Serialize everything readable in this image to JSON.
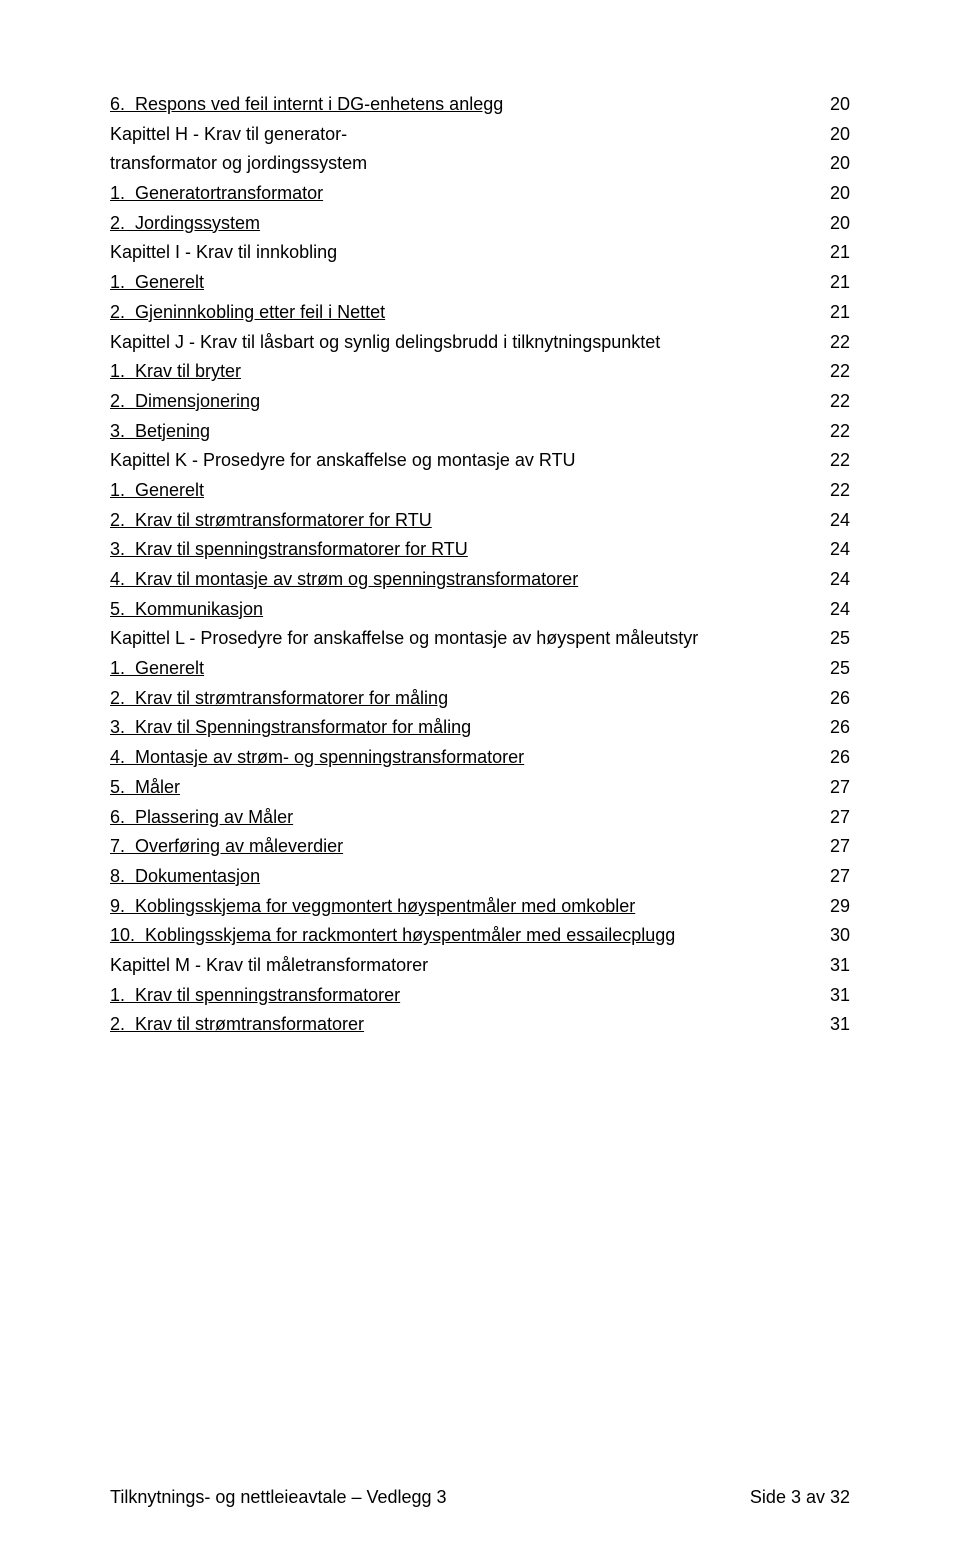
{
  "toc": [
    {
      "num": "6.",
      "text": "Respons ved feil internt i DG-enhetens anlegg",
      "page": "20",
      "indent": "indent-1",
      "underline": true
    },
    {
      "num": "",
      "text": "Kapittel H - Krav til generator-",
      "page": "20",
      "indent": "",
      "underline": false
    },
    {
      "num": "",
      "text": "transformator og jordingssystem",
      "page": "20",
      "indent": "",
      "underline": false
    },
    {
      "num": "1.",
      "text": "Generatortransformator",
      "page": "20",
      "indent": "indent-1",
      "underline": true
    },
    {
      "num": "2.",
      "text": "Jordingssystem",
      "page": "20",
      "indent": "indent-1",
      "underline": true
    },
    {
      "num": "",
      "text": "Kapittel I - Krav til innkobling",
      "page": "21",
      "indent": "",
      "underline": false
    },
    {
      "num": "1.",
      "text": "Generelt",
      "page": "21",
      "indent": "indent-1",
      "underline": true
    },
    {
      "num": "2.",
      "text": "Gjeninnkobling etter feil i Nettet",
      "page": "21",
      "indent": "indent-1",
      "underline": true
    },
    {
      "num": "",
      "text": "Kapittel J - Krav til låsbart og synlig delingsbrudd i tilknytningspunktet",
      "page": "22",
      "indent": "",
      "underline": false
    },
    {
      "num": "1.",
      "text": "Krav til bryter",
      "page": "22",
      "indent": "indent-1",
      "underline": true
    },
    {
      "num": "2.",
      "text": "Dimensjonering",
      "page": "22",
      "indent": "indent-1",
      "underline": true
    },
    {
      "num": "3.",
      "text": "Betjening",
      "page": "22",
      "indent": "indent-1",
      "underline": true
    },
    {
      "num": "",
      "text": "Kapittel K - Prosedyre for anskaffelse og montasje av RTU",
      "page": "22",
      "indent": "",
      "underline": false
    },
    {
      "num": "1.",
      "text": "Generelt",
      "page": "22",
      "indent": "indent-1",
      "underline": true
    },
    {
      "num": "2.",
      "text": "Krav til strømtransformatorer for RTU",
      "page": "24",
      "indent": "indent-1",
      "underline": true
    },
    {
      "num": "3.",
      "text": "Krav til spenningstransformatorer for RTU",
      "page": "24",
      "indent": "indent-1",
      "underline": true
    },
    {
      "num": "4.",
      "text": "Krav til montasje av strøm og spenningstransformatorer",
      "page": "24",
      "indent": "indent-1",
      "underline": true
    },
    {
      "num": "5.",
      "text": "Kommunikasjon",
      "page": "24",
      "indent": "indent-1",
      "underline": true
    },
    {
      "num": "",
      "text": "Kapittel L - Prosedyre for anskaffelse og montasje av høyspent måleutstyr",
      "page": "25",
      "indent": "",
      "underline": false
    },
    {
      "num": "1.",
      "text": "Generelt",
      "page": "25",
      "indent": "indent-1",
      "underline": true
    },
    {
      "num": "2.",
      "text": "Krav til strømtransformatorer for måling",
      "page": "26",
      "indent": "indent-1",
      "underline": true
    },
    {
      "num": "3.",
      "text": "Krav til Spenningstransformator for måling",
      "page": "26",
      "indent": "indent-1",
      "underline": true
    },
    {
      "num": "4.",
      "text": "Montasje av strøm- og spenningstransformatorer",
      "page": "26",
      "indent": "indent-1",
      "underline": true
    },
    {
      "num": "5.",
      "text": "Måler",
      "page": "27",
      "indent": "indent-1",
      "underline": true
    },
    {
      "num": "6.",
      "text": "Plassering av Måler",
      "page": "27",
      "indent": "indent-1",
      "underline": true
    },
    {
      "num": "7.",
      "text": "Overføring av måleverdier",
      "page": "27",
      "indent": "indent-1",
      "underline": true
    },
    {
      "num": "8.",
      "text": "Dokumentasjon",
      "page": "27",
      "indent": "indent-1",
      "underline": true
    },
    {
      "num": "9.",
      "text": "Koblingsskjema for veggmontert høyspentmåler med omkobler",
      "page": "29",
      "indent": "indent-1",
      "underline": true
    },
    {
      "num": "10.",
      "text": "Koblingsskjema for rackmontert høyspentmåler med essailecplugg",
      "page": "30",
      "indent": "indent-1b",
      "underline": true
    },
    {
      "num": "",
      "text": "Kapittel M - Krav til måletransformatorer",
      "page": "31",
      "indent": "",
      "underline": false
    },
    {
      "num": "1.",
      "text": "Krav til spenningstransformatorer",
      "page": "31",
      "indent": "indent-1",
      "underline": true
    },
    {
      "num": "2.",
      "text": "Krav til strømtransformatorer",
      "page": "31",
      "indent": "indent-1",
      "underline": true
    }
  ],
  "footer": {
    "left": "Tilknytnings- og nettleieavtale – Vedlegg 3",
    "right": "Side 3 av 32"
  }
}
